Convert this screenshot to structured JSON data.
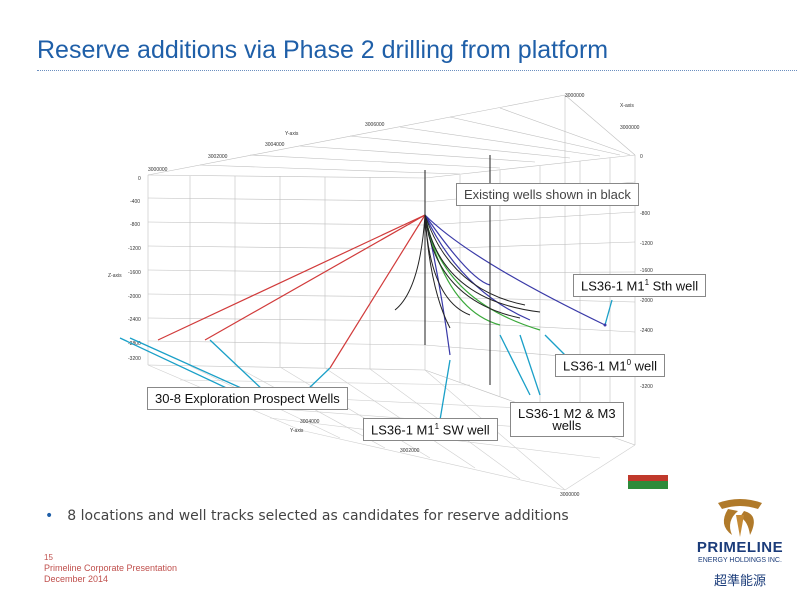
{
  "slide": {
    "title": "Reserve additions via Phase 2 drilling from platform",
    "bullet": "8 locations and well tracks selected as candidates for reserve additions",
    "page_number": "15",
    "footer_line1": "Primeline Corporate Presentation",
    "footer_line2": "December 2014"
  },
  "callouts": {
    "existing_wells": "Existing wells shown in black",
    "sth_well_prefix": "LS36-1 M1",
    "sth_well_sup": "1",
    "sth_well_suffix": " Sth well",
    "m10_prefix": "LS36-1 M1",
    "m10_sup": "0",
    "m10_suffix": " well",
    "m2m3_line1": "LS36-1 M2 & M3",
    "m2m3_line2": "wells",
    "exploration": "30-8 Exploration Prospect Wells",
    "sw_prefix": "LS36-1 M1",
    "sw_sup": "1",
    "sw_suffix": " SW well"
  },
  "plot3d": {
    "y_axis_label": "Y-axis",
    "x_axis_label": "X-axis",
    "z_axis_label": "Z-axis",
    "y_ticks": [
      "3000000",
      "3002000",
      "3004000",
      "3006000"
    ],
    "x_ticks_top": [
      "3000000",
      "3000000"
    ],
    "z_ticks": [
      "0",
      "-400",
      "-800",
      "-1200",
      "-1600",
      "-2000",
      "-2400",
      "-2800",
      "-3200"
    ],
    "z_ticks_right": [
      "0",
      "-800",
      "-1200",
      "-1600",
      "-2000",
      "-2400",
      "-3200"
    ],
    "bottom_ticks": [
      "3004000",
      "3002000",
      "3000000"
    ],
    "bottom_axis_label": "Y-axis"
  },
  "colors": {
    "title": "#1f5fa8",
    "exploration_wells": "#d13b3b",
    "planned_wells": "#3a3aa8",
    "m2m3_wells": "#3aa83a",
    "existing_wells": "#222222",
    "leader_lines": "#1aa0c8",
    "footer": "#c0504d"
  },
  "logo": {
    "name": "PRIMELINE",
    "subtitle": "ENERGY HOLDINGS INC.",
    "chinese": "超準能源"
  }
}
